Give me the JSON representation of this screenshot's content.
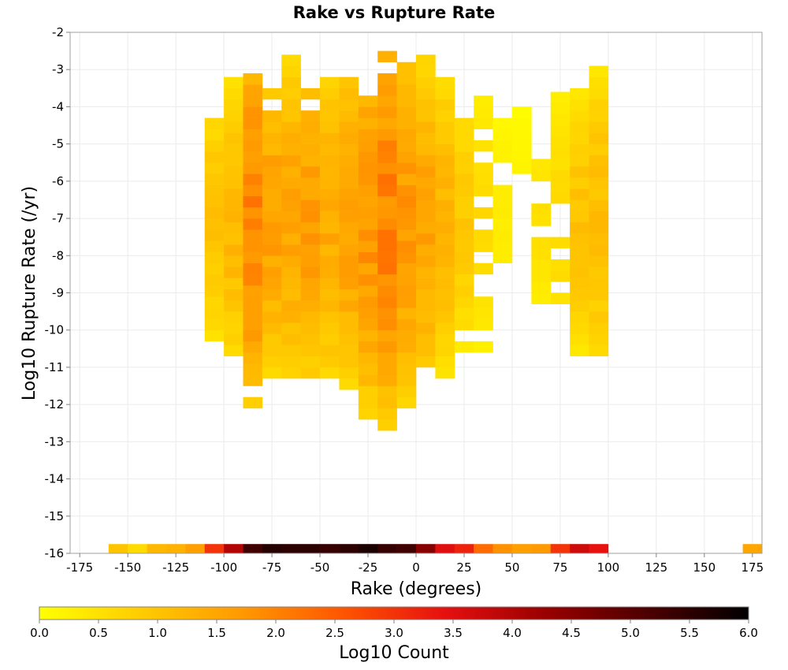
{
  "chart_data": {
    "type": "heatmap",
    "title": "Rake vs Rupture Rate",
    "xlabel": "Rake (degrees)",
    "ylabel": "Log10 Rupture Rate (/yr)",
    "xlim": [
      -180,
      180
    ],
    "ylim": [
      -16,
      -2
    ],
    "x_bin_width": 10,
    "y_bin_width": 0.3,
    "grid": true,
    "x_ticks": [
      -175,
      -150,
      -125,
      -100,
      -75,
      -50,
      -25,
      0,
      25,
      50,
      75,
      100,
      125,
      150,
      175
    ],
    "y_ticks": [
      -2,
      -3,
      -4,
      -5,
      -6,
      -7,
      -8,
      -9,
      -10,
      -11,
      -12,
      -13,
      -14,
      -15,
      -16
    ],
    "colorbar": {
      "label": "Log10 Count",
      "min": 0.0,
      "max": 6.0,
      "ticks": [
        "0.0",
        "0.5",
        "1.0",
        "1.5",
        "2.0",
        "2.5",
        "3.0",
        "3.5",
        "4.0",
        "4.5",
        "5.0",
        "5.5",
        "6.0"
      ],
      "colors": [
        "#ffff00",
        "#ffcc00",
        "#ff9900",
        "#ff5500",
        "#e61010",
        "#990000",
        "#4d0000",
        "#000000"
      ]
    },
    "zero_rate_row": {
      "y": -16,
      "x": [
        -155,
        -145,
        -135,
        -125,
        -115,
        -105,
        -95,
        -85,
        -75,
        -65,
        -55,
        -45,
        -35,
        -25,
        -15,
        -5,
        5,
        15,
        25,
        35,
        45,
        55,
        65,
        75,
        85,
        95,
        175
      ],
      "log10_count": [
        1.0,
        0.6,
        1.2,
        1.3,
        1.6,
        3.0,
        4.0,
        5.3,
        5.6,
        5.5,
        5.5,
        5.4,
        5.5,
        5.7,
        5.4,
        5.3,
        4.5,
        3.5,
        3.2,
        2.3,
        1.8,
        1.6,
        1.7,
        3.0,
        3.7,
        3.4,
        1.5
      ],
      "bin_height": 0.25
    },
    "column_bins": [
      {
        "x": -105,
        "y_from": -10.6,
        "y_to": -3.8,
        "peak": 1.0
      },
      {
        "x": -95,
        "y_from": -11.0,
        "y_to": -3.3,
        "peak": 1.2
      },
      {
        "x": -85,
        "y_from": -12.1,
        "y_to": -2.7,
        "peak": 2.0
      },
      {
        "x": -75,
        "y_from": -11.3,
        "y_to": -3.6,
        "peak": 1.6
      },
      {
        "x": -65,
        "y_from": -11.3,
        "y_to": -2.7,
        "peak": 1.5
      },
      {
        "x": -55,
        "y_from": -11.6,
        "y_to": -3.6,
        "peak": 1.6
      },
      {
        "x": -45,
        "y_from": -11.6,
        "y_to": -3.3,
        "peak": 1.4
      },
      {
        "x": -35,
        "y_from": -11.6,
        "y_to": -3.3,
        "peak": 1.6
      },
      {
        "x": -25,
        "y_from": -12.4,
        "y_to": -3.0,
        "peak": 1.8
      },
      {
        "x": -15,
        "y_from": -12.7,
        "y_to": -2.4,
        "peak": 2.0
      },
      {
        "x": -5,
        "y_from": -12.1,
        "y_to": -2.7,
        "peak": 1.7
      },
      {
        "x": 5,
        "y_from": -11.0,
        "y_to": -2.4,
        "peak": 1.5
      },
      {
        "x": 15,
        "y_from": -11.3,
        "y_to": -3.3,
        "peak": 1.2
      },
      {
        "x": 25,
        "y_from": -10.6,
        "y_to": -3.6,
        "peak": 0.9
      },
      {
        "x": 35,
        "y_from": -10.6,
        "y_to": -3.6,
        "peak": 0.6
      },
      {
        "x": 45,
        "y_from": -8.2,
        "y_to": -4.4,
        "peak": 0.3
      },
      {
        "x": 55,
        "y_from": -5.8,
        "y_to": -4.1,
        "peak": 0.2
      },
      {
        "x": 65,
        "y_from": -9.6,
        "y_to": -4.7,
        "peak": 0.5
      },
      {
        "x": 75,
        "y_from": -9.3,
        "y_to": -3.6,
        "peak": 0.6
      },
      {
        "x": 85,
        "y_from": -10.7,
        "y_to": -3.6,
        "peak": 1.0
      },
      {
        "x": 95,
        "y_from": -10.7,
        "y_to": -3.0,
        "peak": 1.1
      }
    ]
  }
}
